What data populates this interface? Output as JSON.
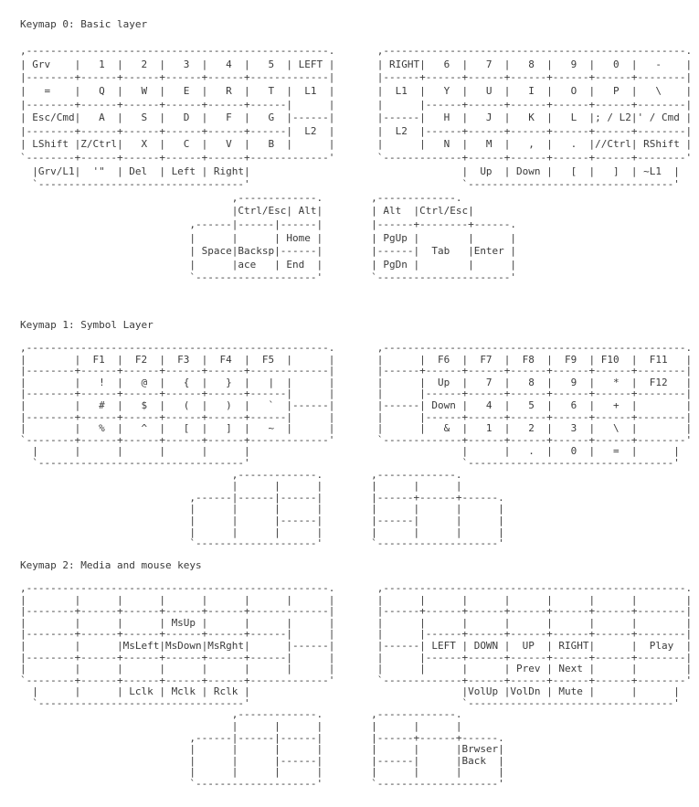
{
  "page": {
    "background_color": "#ffffff",
    "text_color": "#3a3a3a"
  },
  "sections": [
    {
      "title": "Keymap 0: Basic layer",
      "art": [
        ",--------------------------------------------------.       ,--------------------------------------------------.",
        "| Grv    |   1  |   2  |   3  |   4  |   5  | LEFT |       | RIGHT|   6  |   7  |   8  |   9  |   0  |   -    |",
        "|--------+------+------+------+------+-------------|       |------+------+------+------+------+------+--------|",
        "|   =    |   Q  |   W  |   E  |   R  |   T  |  L1  |       |  L1  |   Y  |   U  |   I  |   O  |   P  |   \\    |",
        "|--------+------+------+------+------+------|      |       |      |------+------+------+------+------+--------|",
        "| Esc/Cmd|   A  |   S  |   D  |   F  |   G  |------|       |------|   H  |   J  |   K  |   L  |; / L2|' / Cmd |",
        "|--------+------+------+------+------+------|  L2  |       |  L2  |------+------+------+------+------+--------|",
        "| LShift |Z/Ctrl|   X  |   C  |   V  |   B  |      |       |      |   N  |   M  |   ,  |   .  |//Ctrl| RShift |",
        "`--------+------+------+------+------+-------------'       `-------------+------+------+------+------+--------'",
        "  |Grv/L1|  '\"  | Del  | Left | Right|                                   |  Up  | Down |   [  |   ]  | ~L1  |",
        "  `----------------------------------'                                   `----------------------------------'",
        "                                   ,-------------.        ,-------------.",
        "                                   |Ctrl/Esc| Alt|        | Alt  |Ctrl/Esc|",
        "                            ,------|------|------|        |------+--------+------.",
        "                            |      |      | Home |        | PgUp |        |      |",
        "                            | Space|Backsp|------|        |------|  Tab   |Enter |",
        "                            |      |ace   | End  |        | PgDn |        |      |",
        "                            `--------------------'        `----------------------'"
      ]
    },
    {
      "title": "Keymap 1: Symbol Layer",
      "art": [
        ",--------------------------------------------------.       ,--------------------------------------------------.",
        "|        |  F1  |  F2  |  F3  |  F4  |  F5  |      |       |      |  F6  |  F7  |  F8  |  F9  | F10  |  F11   |",
        "|--------+------+------+------+------+-------------|       |------+------+------+------+------+------+--------|",
        "|        |   !  |   @  |   {  |   }  |   |  |      |       |      |  Up  |   7  |   8  |   9  |   *  |  F12   |",
        "|--------+------+------+------+------+------|      |       |      |------+------+------+------+------+--------|",
        "|        |   #  |   $  |   (  |   )  |   `  |------|       |------| Down |   4  |   5  |   6  |   +  |        |",
        "|--------+------+------+------+------+------|      |       |      |------+------+------+------+------+--------|",
        "|        |   %  |   ^  |   [  |   ]  |   ~  |      |       |      |   &  |   1  |   2  |   3  |   \\  |        |",
        "`--------+------+------+------+------+-------------'       `-------------+------+------+------+------+--------'",
        "  |      |      |      |      |      |                                   |      |   .  |   0  |   =  |      |",
        "  `----------------------------------'                                   `----------------------------------'",
        "                                   ,-------------.        ,-------------.",
        "                                   |      |      |        |      |      |",
        "                            ,------|------|------|        |------+------+------.",
        "                            |      |      |      |        |      |      |      |",
        "                            |      |      |------|        |------|      |      |",
        "                            |      |      |      |        |      |      |      |",
        "                            `--------------------'        `--------------------'"
      ]
    },
    {
      "title": "Keymap 2: Media and mouse keys",
      "art": [
        ",--------------------------------------------------.       ,--------------------------------------------------.",
        "|        |      |      |      |      |      |      |       |      |      |      |      |      |      |        |",
        "|--------+------+------+------+------+-------------|       |------+------+------+------+------+------+--------|",
        "|        |      |      | MsUp |      |      |      |       |      |      |      |      |      |      |        |",
        "|--------+------+------+------+------+------|      |       |      |------+------+------+------+------+--------|",
        "|        |      |MsLeft|MsDown|MsRght|      |------|       |------| LEFT | DOWN |  UP  | RIGHT|      |  Play  |",
        "|--------+------+------+------+------+------|      |       |      |------+------+------+------+------+--------|",
        "|        |      |      |      |      |      |      |       |      |      |      | Prev | Next |      |        |",
        "`--------+------+------+------+------+-------------'       `-------------+------+------+------+------+--------'",
        "  |      |      | Lclk | Mclk | Rclk |                                   |VolUp |VolDn | Mute |      |      |",
        "  `----------------------------------'                                   `----------------------------------'",
        "                                   ,-------------.        ,-------------.",
        "                                   |      |      |        |      |      |",
        "                            ,------|------|------|        |------+------+------.",
        "                            |      |      |      |        |      |      |Brwser|",
        "                            |      |      |------|        |------|      |Back  |",
        "                            |      |      |      |        |      |      |      |",
        "                            `--------------------'        `--------------------'"
      ]
    }
  ]
}
